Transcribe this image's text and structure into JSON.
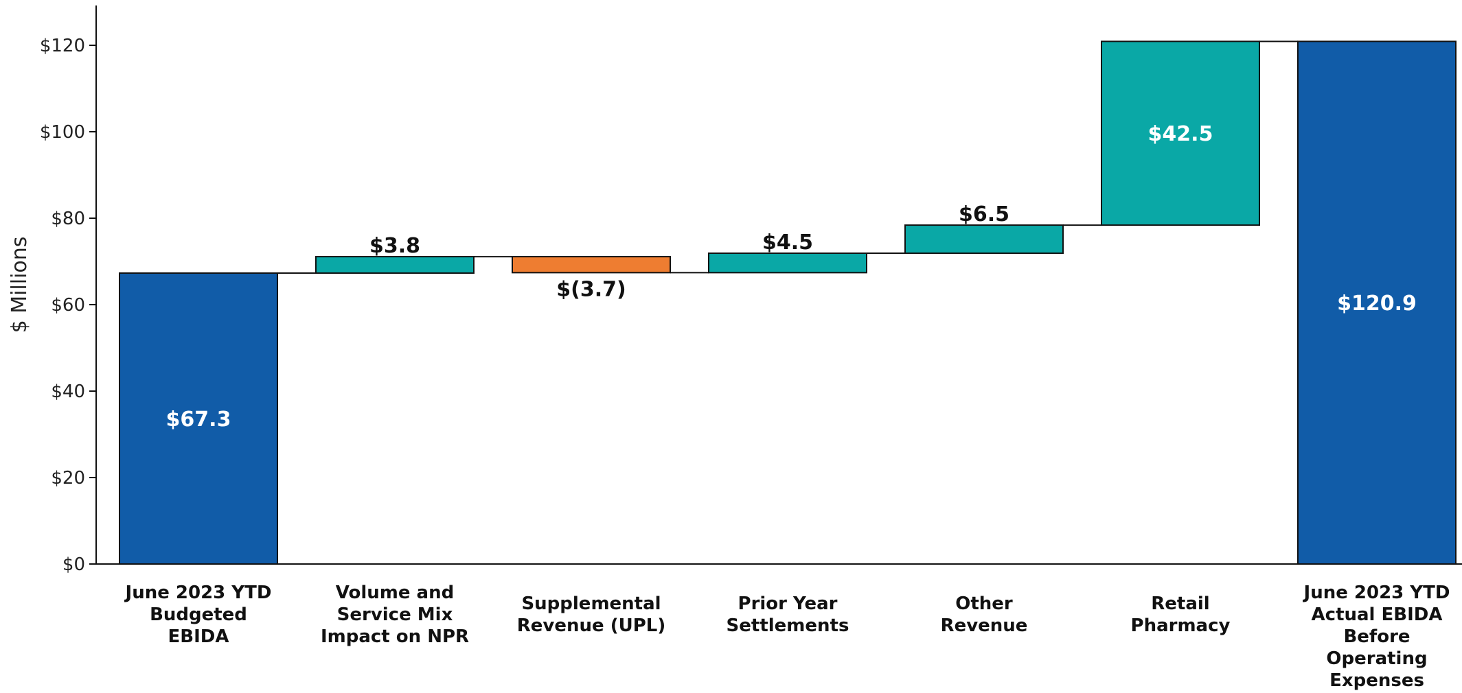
{
  "chart_data": {
    "type": "bar",
    "subtype": "waterfall",
    "ylabel": "$ Millions",
    "ylim": [
      0,
      130
    ],
    "yticks": [
      0,
      20,
      40,
      60,
      80,
      100,
      120
    ],
    "ytick_labels": [
      "$0",
      "$20",
      "$40",
      "$60",
      "$80",
      "$100",
      "$120"
    ],
    "grid": false,
    "legend": "none",
    "categories": [
      [
        "June 2023 YTD",
        "Budgeted",
        "EBIDA"
      ],
      [
        "Volume and",
        "Service Mix",
        "Impact on NPR"
      ],
      [
        "Supplemental",
        "Revenue (UPL)"
      ],
      [
        "Prior Year",
        "Settlements"
      ],
      [
        "Other",
        "Revenue"
      ],
      [
        "Retail",
        "Pharmacy"
      ],
      [
        "June 2023 YTD",
        "Actual EBIDA",
        "Before",
        "Operating",
        "Expenses"
      ]
    ],
    "steps": [
      {
        "kind": "total",
        "value": 67.3,
        "label": "$67.3"
      },
      {
        "kind": "delta",
        "value": 3.8,
        "label": "$3.8"
      },
      {
        "kind": "delta",
        "value": -3.7,
        "label": "$(3.7)"
      },
      {
        "kind": "delta",
        "value": 4.5,
        "label": "$4.5"
      },
      {
        "kind": "delta",
        "value": 6.5,
        "label": "$6.5"
      },
      {
        "kind": "delta",
        "value": 42.5,
        "label": "$42.5"
      },
      {
        "kind": "total",
        "value": 120.9,
        "label": "$120.9"
      }
    ],
    "colors": {
      "total": "#115CA8",
      "increase": "#0AA8A6",
      "decrease": "#EE7D31"
    }
  }
}
